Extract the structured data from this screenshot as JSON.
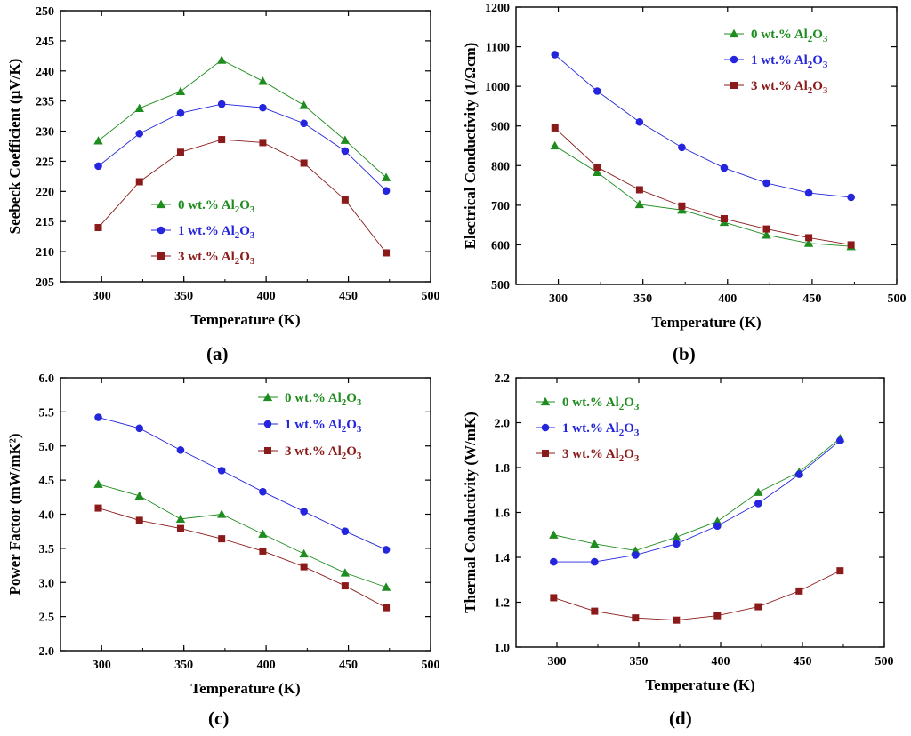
{
  "colors": {
    "series0": "#1e8c1e",
    "series1": "#2525dd",
    "series2": "#8b1a1a"
  },
  "captions": {
    "a": "a",
    "b": "b",
    "c": "c",
    "d": "d"
  },
  "chart_data": [
    {
      "id": "a",
      "type": "line",
      "title": "",
      "xlabel": "Temperature (K)",
      "ylabel": "Seebeck Coefficient (µV/K)",
      "xlim": [
        275,
        500
      ],
      "ylim": [
        205,
        250
      ],
      "xticks": [
        300,
        350,
        400,
        450,
        500
      ],
      "yticks": [
        205,
        210,
        215,
        220,
        225,
        230,
        235,
        240,
        245,
        250
      ],
      "legend_position": "lower-center",
      "x": [
        298,
        323,
        348,
        373,
        398,
        423,
        448,
        473
      ],
      "series": [
        {
          "name": "0 wt.% Al2O3",
          "marker": "triangle",
          "values": [
            228.4,
            233.8,
            236.6,
            241.8,
            238.3,
            234.3,
            228.5,
            222.3
          ]
        },
        {
          "name": "1 wt.% Al2O3",
          "marker": "circle",
          "values": [
            224.2,
            229.6,
            233.0,
            234.5,
            233.9,
            231.3,
            226.7,
            220.1
          ]
        },
        {
          "name": "3 wt.% Al2O3",
          "marker": "square",
          "values": [
            214.0,
            221.6,
            226.5,
            228.6,
            228.1,
            224.7,
            218.6,
            209.8
          ]
        }
      ]
    },
    {
      "id": "b",
      "type": "line",
      "title": "",
      "xlabel": "Temperature (K)",
      "ylabel": "Electrical Conductivity (1/Ωcm)",
      "xlim": [
        275,
        500
      ],
      "ylim": [
        500,
        1200
      ],
      "xticks": [
        300,
        350,
        400,
        450,
        500
      ],
      "yticks": [
        500,
        600,
        700,
        800,
        900,
        1000,
        1100,
        1200
      ],
      "legend_position": "top-right",
      "x": [
        298,
        323,
        348,
        373,
        398,
        423,
        448,
        473
      ],
      "series": [
        {
          "name": "0 wt.% Al2O3",
          "marker": "triangle",
          "values": [
            850,
            783,
            702,
            688,
            657,
            625,
            604,
            596
          ]
        },
        {
          "name": "1 wt.% Al2O3",
          "marker": "circle",
          "values": [
            1080,
            988,
            910,
            846,
            794,
            756,
            731,
            720
          ]
        },
        {
          "name": "3 wt.% Al2O3",
          "marker": "square",
          "values": [
            895,
            796,
            739,
            698,
            666,
            640,
            618,
            600
          ]
        }
      ]
    },
    {
      "id": "c",
      "type": "line",
      "title": "",
      "xlabel": "Temperature (K)",
      "ylabel": "Power Factor (mW/mK²)",
      "xlim": [
        275,
        500
      ],
      "ylim": [
        2.0,
        6.0
      ],
      "xticks": [
        300,
        350,
        400,
        450,
        500
      ],
      "yticks": [
        "2.0",
        "2.5",
        "3.0",
        "3.5",
        "4.0",
        "4.5",
        "5.0",
        "5.5",
        "6.0"
      ],
      "legend_position": "top-right",
      "x": [
        298,
        323,
        348,
        373,
        398,
        423,
        448,
        473
      ],
      "series": [
        {
          "name": "0 wt.% Al2O3",
          "marker": "triangle",
          "values": [
            4.44,
            4.27,
            3.93,
            4.0,
            3.71,
            3.42,
            3.14,
            2.93
          ]
        },
        {
          "name": "1 wt.% Al2O3",
          "marker": "circle",
          "values": [
            5.42,
            5.26,
            4.94,
            4.64,
            4.33,
            4.04,
            3.75,
            3.48
          ]
        },
        {
          "name": "3 wt.% Al2O3",
          "marker": "square",
          "values": [
            4.09,
            3.91,
            3.79,
            3.64,
            3.46,
            3.23,
            2.95,
            2.63
          ]
        }
      ]
    },
    {
      "id": "d",
      "type": "line",
      "title": "",
      "xlabel": "Temperature (K)",
      "ylabel": "Thermal Conductivity (W/mK)",
      "xlim": [
        275,
        500
      ],
      "ylim": [
        1.0,
        2.2
      ],
      "xticks": [
        300,
        350,
        400,
        450,
        500
      ],
      "yticks": [
        "1.0",
        "1.2",
        "1.4",
        "1.6",
        "1.8",
        "2.0",
        "2.2"
      ],
      "legend_position": "top-left",
      "x": [
        298,
        323,
        348,
        373,
        398,
        423,
        448,
        473
      ],
      "series": [
        {
          "name": "0 wt.% Al2O3",
          "marker": "triangle",
          "values": [
            1.5,
            1.46,
            1.43,
            1.49,
            1.56,
            1.69,
            1.78,
            1.93
          ]
        },
        {
          "name": "1 wt.% Al2O3",
          "marker": "circle",
          "values": [
            1.38,
            1.38,
            1.41,
            1.46,
            1.54,
            1.64,
            1.77,
            1.92
          ]
        },
        {
          "name": "3 wt.% Al2O3",
          "marker": "square",
          "values": [
            1.22,
            1.16,
            1.13,
            1.12,
            1.14,
            1.18,
            1.25,
            1.34
          ]
        }
      ]
    }
  ]
}
